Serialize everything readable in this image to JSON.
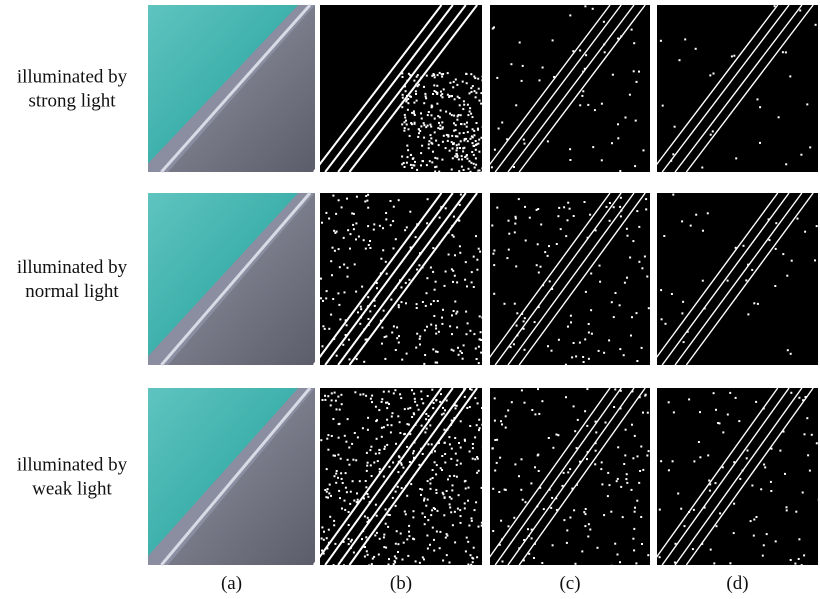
{
  "rows": [
    {
      "lines": [
        "illuminated by",
        "strong light"
      ]
    },
    {
      "lines": [
        "illuminated by",
        "normal light"
      ]
    },
    {
      "lines": [
        "illuminated by",
        "weak light"
      ]
    }
  ],
  "columns": [
    "(a)",
    "(b)",
    "(c)",
    "(d)"
  ]
}
